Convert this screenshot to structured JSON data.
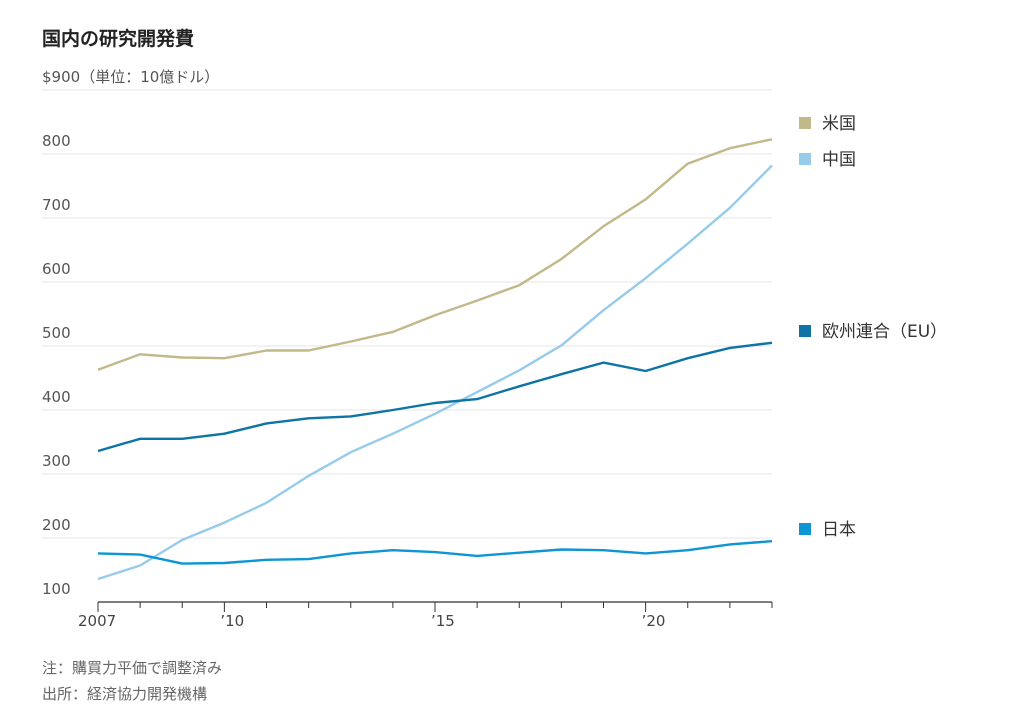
{
  "title": "国内の研究開発費",
  "notes": {
    "note": "注：購買力平価で調整済み",
    "source": "出所：経済協力開発機構"
  },
  "chart_data": {
    "type": "line",
    "x": [
      2007,
      2008,
      2009,
      2010,
      2011,
      2012,
      2013,
      2014,
      2015,
      2016,
      2017,
      2018,
      2019,
      2020,
      2021,
      2022,
      2023
    ],
    "xlim": [
      2007,
      2023
    ],
    "ylim": [
      100,
      900
    ],
    "yticks": [
      100,
      200,
      300,
      400,
      500,
      600,
      700,
      800,
      900
    ],
    "ytick_labels": [
      "100",
      "200",
      "300",
      "400",
      "500",
      "600",
      "700",
      "800",
      "$900"
    ],
    "ylabel_unit": "（単位：10億ドル）",
    "xtick_values": [
      2007,
      2010,
      2015,
      2020
    ],
    "xtick_labels": [
      "2007",
      "’10",
      "’15",
      "’20"
    ],
    "grid": true,
    "legend": "right",
    "series": [
      {
        "name": "米国",
        "color": "#c2b98a",
        "values": [
          463,
          487,
          482,
          481,
          493,
          493,
          507,
          522,
          548,
          571,
          595,
          636,
          687,
          729,
          785,
          809,
          823
        ]
      },
      {
        "name": "中国",
        "color": "#96cbeb",
        "values": [
          136,
          157,
          197,
          224,
          255,
          297,
          334,
          363,
          394,
          428,
          462,
          501,
          556,
          606,
          660,
          716,
          782
        ]
      },
      {
        "name": "欧州連合（EU）",
        "color": "#0e74a6",
        "values": [
          336,
          355,
          355,
          363,
          379,
          387,
          390,
          400,
          411,
          417,
          437,
          456,
          474,
          461,
          481,
          497,
          505
        ]
      },
      {
        "name": "日本",
        "color": "#0d95d4",
        "values": [
          176,
          174,
          160,
          161,
          166,
          167,
          176,
          181,
          178,
          172,
          177,
          182,
          181,
          176,
          181,
          190,
          195
        ]
      }
    ]
  }
}
